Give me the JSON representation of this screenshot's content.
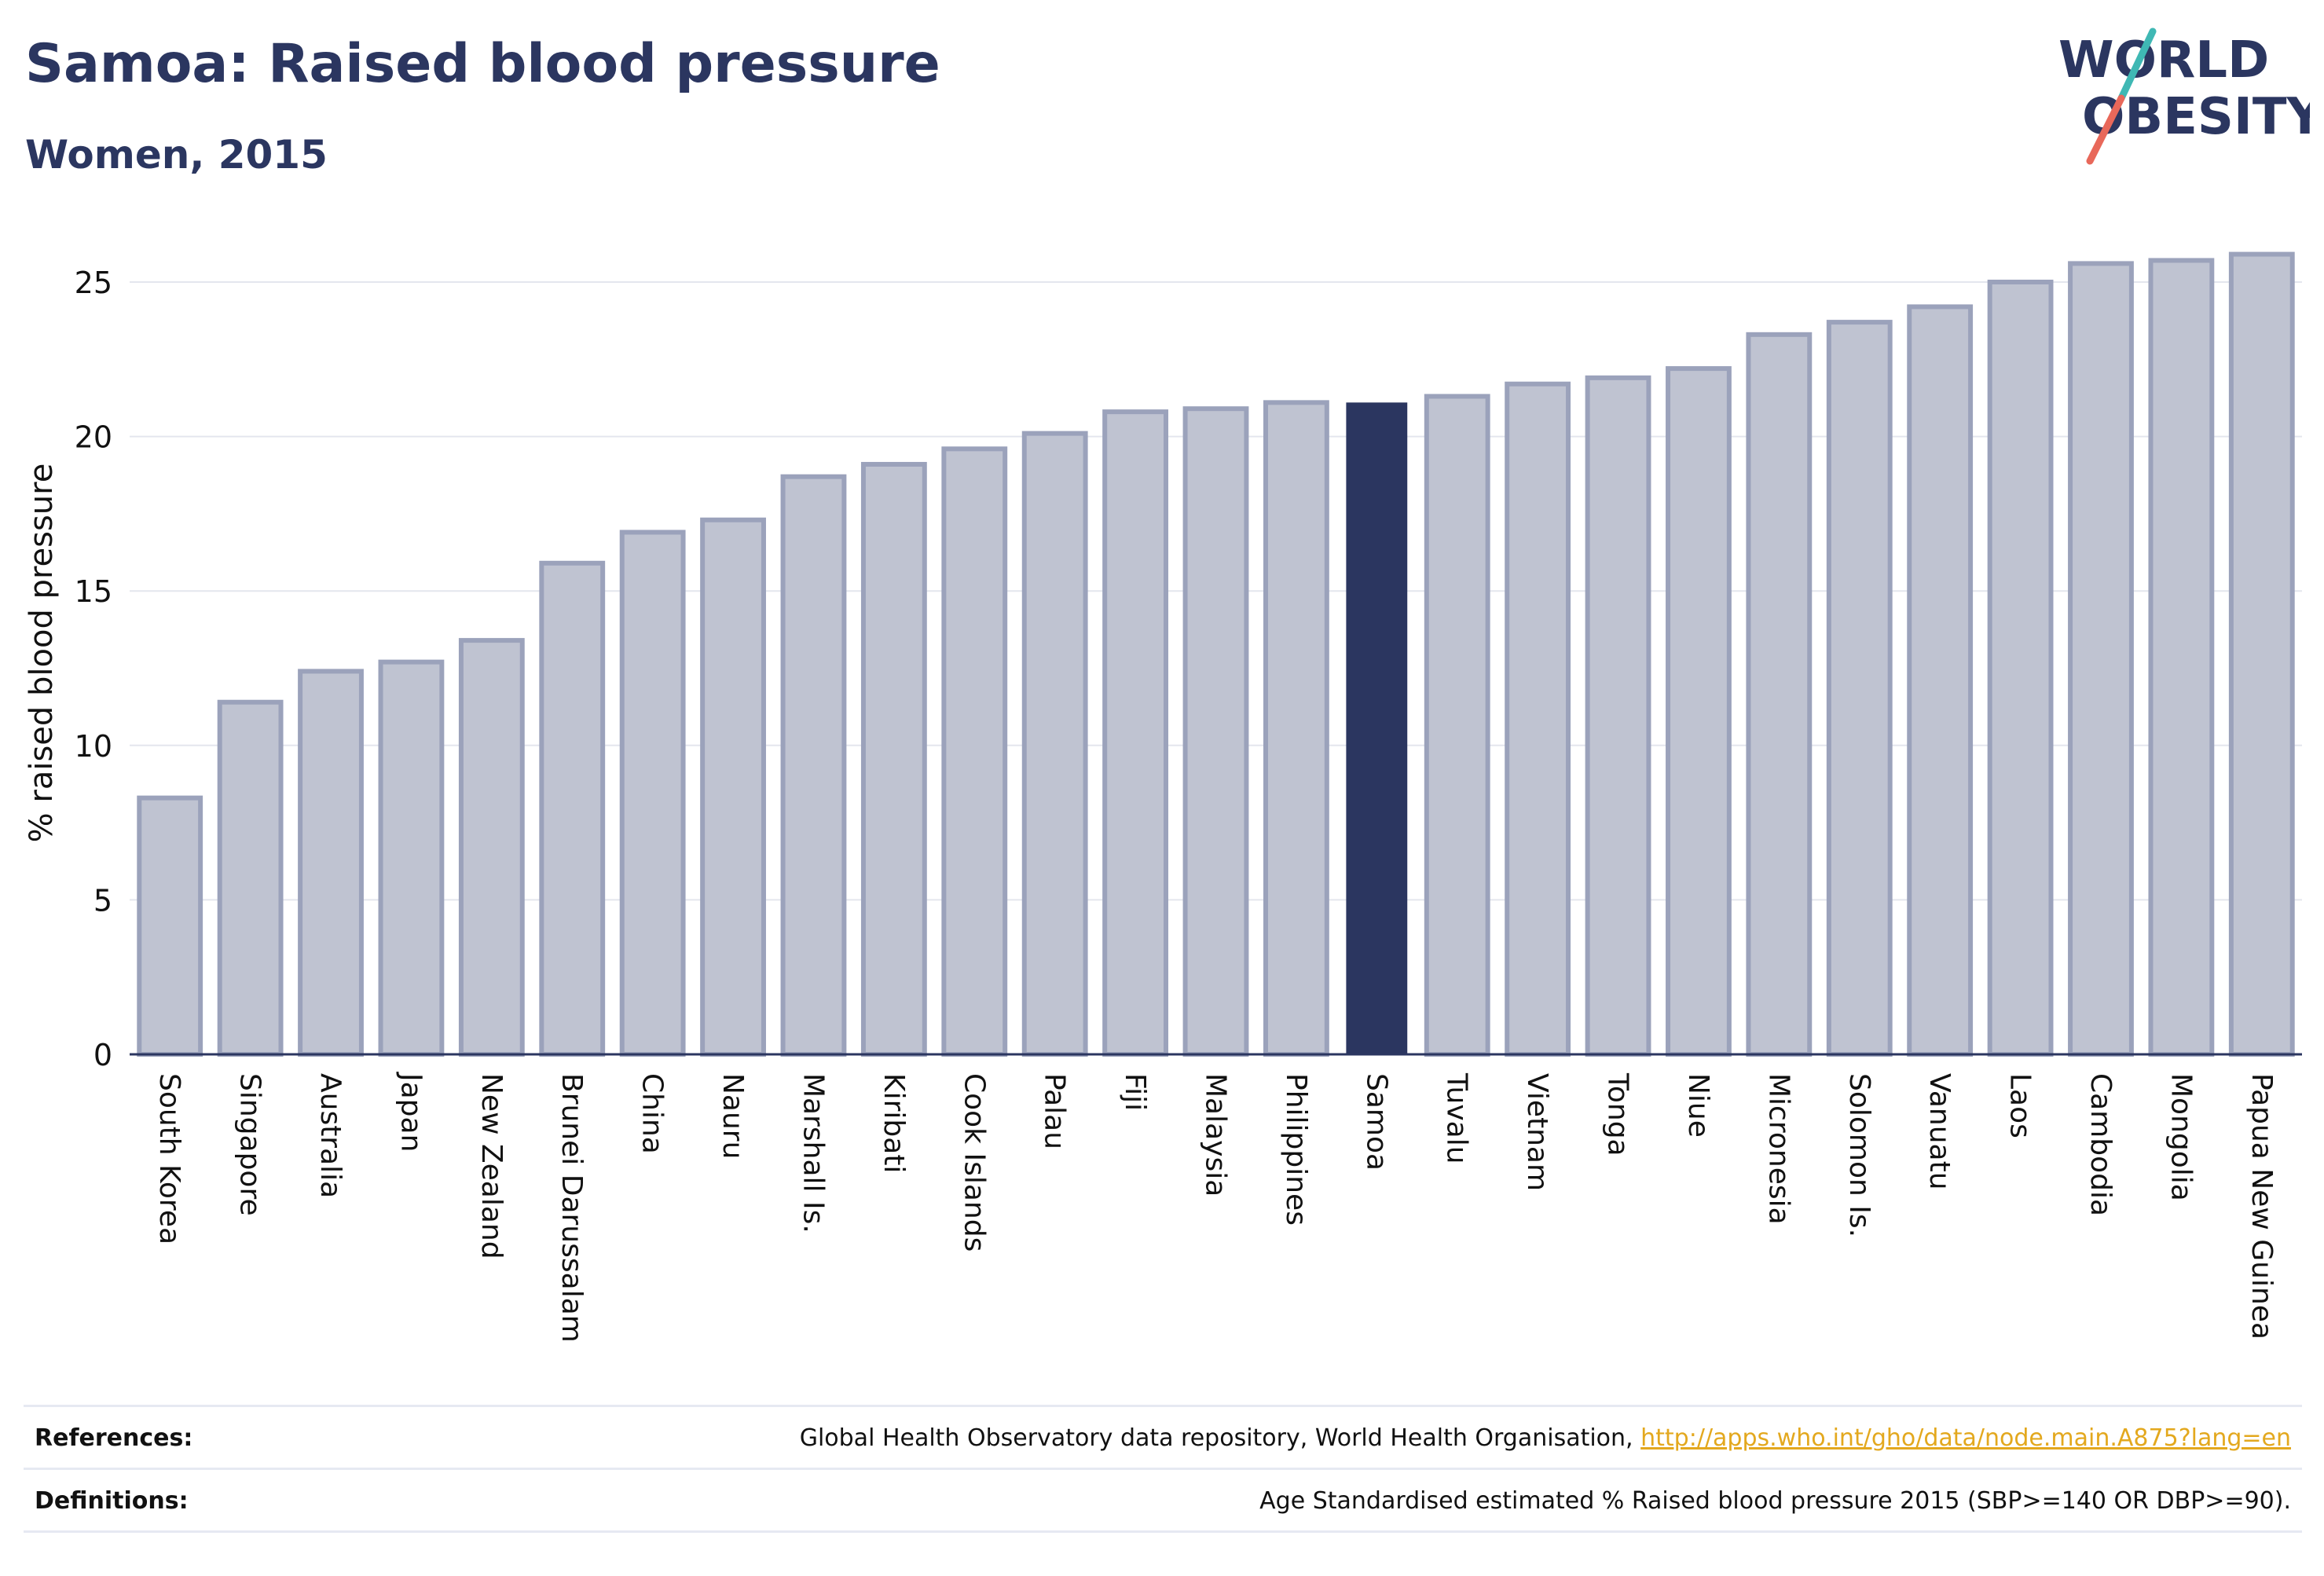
{
  "header": {
    "title": "Samoa: Raised blood pressure",
    "subtitle": "Women, 2015"
  },
  "logo": {
    "line1": "WORLD",
    "line2": "OBESITY",
    "colors": {
      "text": "#2b3660",
      "slash_teal": "#3fb8b4",
      "slash_coral": "#e8685a"
    }
  },
  "colors": {
    "bar_fill": "#bfc3d1",
    "bar_stroke": "#9ba2bb",
    "highlight_fill": "#2b3660",
    "grid": "#e4e6ee",
    "axis": "#2b3660"
  },
  "chart_data": {
    "type": "bar",
    "ylabel": "% raised blood pressure",
    "ylim": [
      0,
      26.5
    ],
    "yticks": [
      0,
      5,
      10,
      15,
      20,
      25
    ],
    "grid": true,
    "highlight": "Samoa",
    "categories": [
      "South Korea",
      "Singapore",
      "Australia",
      "Japan",
      "New Zealand",
      "Brunei Darussalam",
      "China",
      "Nauru",
      "Marshall Is.",
      "Kiribati",
      "Cook Islands",
      "Palau",
      "Fiji",
      "Malaysia",
      "Philippines",
      "Samoa",
      "Tuvalu",
      "Vietnam",
      "Tonga",
      "Niue",
      "Micronesia",
      "Solomon Is.",
      "Vanuatu",
      "Laos",
      "Cambodia",
      "Mongolia",
      "Papua New Guinea"
    ],
    "values": [
      8.3,
      11.4,
      12.4,
      12.7,
      13.4,
      15.9,
      16.9,
      17.3,
      18.7,
      19.1,
      19.6,
      20.1,
      20.8,
      20.9,
      21.1,
      21.1,
      21.3,
      21.7,
      21.9,
      22.2,
      23.3,
      23.7,
      24.2,
      25.0,
      25.6,
      25.7,
      25.9
    ]
  },
  "footer": {
    "references_label": "References:",
    "references_text": "Global Health Observatory data repository, World Health Organisation,",
    "references_link": "http://apps.who.int/gho/data/node.main.A875?lang=en",
    "definitions_label": "Definitions:",
    "definitions_text": "Age Standardised estimated % Raised blood pressure 2015 (SBP>=140 OR DBP>=90)."
  }
}
